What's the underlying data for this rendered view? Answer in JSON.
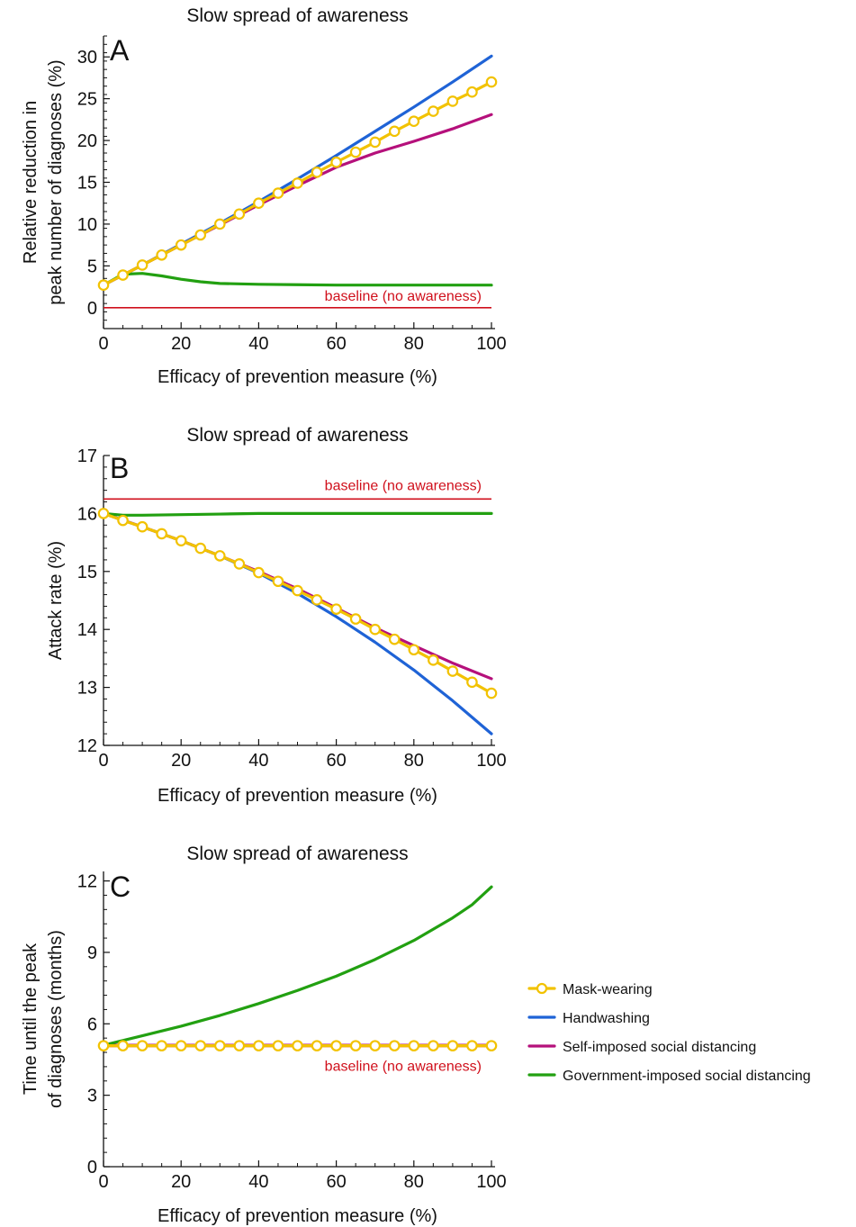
{
  "chart_data": [
    {
      "type": "line",
      "panel": "A",
      "title": "Slow spread of awareness",
      "xlabel": "Efficacy of prevention measure (%)",
      "ylabel_lines": [
        "Relative reduction in",
        "peak number of diagnoses (%)"
      ],
      "xlim": [
        0,
        100
      ],
      "ylim": [
        -2.5,
        32.5
      ],
      "xticks": [
        0,
        20,
        40,
        60,
        80,
        100
      ],
      "yticks": [
        0,
        5,
        10,
        15,
        20,
        25,
        30
      ],
      "grid": false,
      "baseline": {
        "y": 0,
        "label": "baseline (no awareness)"
      },
      "series": [
        {
          "name": "Mask-wearing",
          "key": "mask",
          "markers": true,
          "x": [
            0,
            5,
            10,
            15,
            20,
            25,
            30,
            35,
            40,
            45,
            50,
            55,
            60,
            65,
            70,
            75,
            80,
            85,
            90,
            95,
            100
          ],
          "y": [
            2.7,
            3.9,
            5.1,
            6.3,
            7.5,
            8.7,
            10.0,
            11.2,
            12.5,
            13.7,
            14.9,
            16.2,
            17.4,
            18.6,
            19.8,
            21.1,
            22.3,
            23.5,
            24.7,
            25.8,
            27.0
          ]
        },
        {
          "name": "Handwashing",
          "key": "hand",
          "markers": false,
          "x": [
            0,
            10,
            20,
            30,
            40,
            50,
            60,
            70,
            80,
            90,
            100
          ],
          "y": [
            2.7,
            5.1,
            7.6,
            10.1,
            12.7,
            15.4,
            18.2,
            21.1,
            24.0,
            27.0,
            30.1
          ]
        },
        {
          "name": "Self-imposed social distancing",
          "key": "self",
          "markers": false,
          "x": [
            0,
            10,
            20,
            30,
            40,
            50,
            60,
            70,
            80,
            90,
            100
          ],
          "y": [
            2.7,
            5.1,
            7.5,
            9.9,
            12.3,
            14.6,
            16.8,
            18.5,
            19.9,
            21.4,
            23.1
          ]
        },
        {
          "name": "Government-imposed social distancing",
          "key": "gov",
          "markers": false,
          "x": [
            0,
            5,
            10,
            15,
            20,
            25,
            30,
            40,
            50,
            60,
            70,
            80,
            90,
            100
          ],
          "y": [
            2.7,
            4.0,
            4.1,
            3.8,
            3.4,
            3.1,
            2.9,
            2.8,
            2.75,
            2.7,
            2.7,
            2.7,
            2.7,
            2.7
          ]
        }
      ]
    },
    {
      "type": "line",
      "panel": "B",
      "title": "Slow spread of awareness",
      "xlabel": "Efficacy of prevention measure (%)",
      "ylabel_lines": [
        "Attack rate (%)"
      ],
      "xlim": [
        0,
        100
      ],
      "ylim": [
        12,
        17
      ],
      "xticks": [
        0,
        20,
        40,
        60,
        80,
        100
      ],
      "yticks": [
        12,
        13,
        14,
        15,
        16,
        17
      ],
      "grid": false,
      "baseline": {
        "y": 16.25,
        "label": "baseline (no awareness)"
      },
      "series": [
        {
          "name": "Mask-wearing",
          "key": "mask",
          "markers": true,
          "x": [
            0,
            5,
            10,
            15,
            20,
            25,
            30,
            35,
            40,
            45,
            50,
            55,
            60,
            65,
            70,
            75,
            80,
            85,
            90,
            95,
            100
          ],
          "y": [
            16.0,
            15.88,
            15.77,
            15.65,
            15.53,
            15.4,
            15.27,
            15.13,
            14.98,
            14.83,
            14.67,
            14.51,
            14.35,
            14.18,
            14.0,
            13.83,
            13.65,
            13.47,
            13.28,
            13.09,
            12.9
          ]
        },
        {
          "name": "Handwashing",
          "key": "hand",
          "markers": false,
          "x": [
            0,
            10,
            20,
            30,
            40,
            50,
            60,
            70,
            80,
            90,
            100
          ],
          "y": [
            16.0,
            15.77,
            15.53,
            15.27,
            14.97,
            14.62,
            14.22,
            13.78,
            13.3,
            12.77,
            12.2
          ]
        },
        {
          "name": "Self-imposed social distancing",
          "key": "self",
          "markers": false,
          "x": [
            0,
            10,
            20,
            30,
            40,
            50,
            60,
            70,
            80,
            90,
            100
          ],
          "y": [
            16.0,
            15.77,
            15.53,
            15.27,
            15.0,
            14.7,
            14.37,
            14.03,
            13.72,
            13.42,
            13.15
          ]
        },
        {
          "name": "Government-imposed social distancing",
          "key": "gov",
          "markers": false,
          "x": [
            0,
            5,
            10,
            20,
            30,
            40,
            60,
            80,
            100
          ],
          "y": [
            16.0,
            15.97,
            15.97,
            15.98,
            15.99,
            16.0,
            16.0,
            16.0,
            16.0
          ]
        }
      ]
    },
    {
      "type": "line",
      "panel": "C",
      "title": "Slow spread of awareness",
      "xlabel": "Efficacy of prevention measure (%)",
      "ylabel_lines": [
        "Time until the peak",
        "of diagnoses (months)"
      ],
      "xlim": [
        0,
        100
      ],
      "ylim": [
        0,
        12.4
      ],
      "xticks": [
        0,
        20,
        40,
        60,
        80,
        100
      ],
      "yticks": [
        0,
        3,
        6,
        9,
        12
      ],
      "grid": false,
      "baseline": {
        "y": 5.05,
        "label": "baseline (no awareness)"
      },
      "series": [
        {
          "name": "Mask-wearing",
          "key": "mask",
          "markers": true,
          "x": [
            0,
            5,
            10,
            15,
            20,
            25,
            30,
            35,
            40,
            45,
            50,
            55,
            60,
            65,
            70,
            75,
            80,
            85,
            90,
            95,
            100
          ],
          "y": [
            5.08,
            5.08,
            5.08,
            5.08,
            5.08,
            5.08,
            5.08,
            5.08,
            5.08,
            5.08,
            5.08,
            5.08,
            5.08,
            5.08,
            5.08,
            5.08,
            5.08,
            5.08,
            5.08,
            5.08,
            5.08
          ]
        },
        {
          "name": "Handwashing",
          "key": "hand",
          "markers": false,
          "x": [
            0,
            100
          ],
          "y": [
            5.1,
            5.1
          ]
        },
        {
          "name": "Self-imposed social distancing",
          "key": "self",
          "markers": false,
          "x": [
            0,
            100
          ],
          "y": [
            5.1,
            5.1
          ]
        },
        {
          "name": "Government-imposed social distancing",
          "key": "gov",
          "markers": false,
          "x": [
            0,
            10,
            20,
            30,
            40,
            50,
            60,
            70,
            80,
            90,
            95,
            100
          ],
          "y": [
            5.1,
            5.5,
            5.9,
            6.35,
            6.85,
            7.4,
            8.0,
            8.7,
            9.5,
            10.45,
            11.0,
            11.75
          ]
        }
      ]
    }
  ],
  "legend": {
    "placement": "right",
    "items": [
      {
        "key": "mask",
        "label": "Mask-wearing"
      },
      {
        "key": "hand",
        "label": "Handwashing"
      },
      {
        "key": "self",
        "label": "Self-imposed social distancing"
      },
      {
        "key": "gov",
        "label": "Government-imposed social distancing"
      }
    ]
  },
  "colors": {
    "mask": "#f2c200",
    "hand": "#1f63d6",
    "self": "#b5107b",
    "gov": "#22a011",
    "baseline": "#d0101c",
    "axis": "#111111"
  }
}
